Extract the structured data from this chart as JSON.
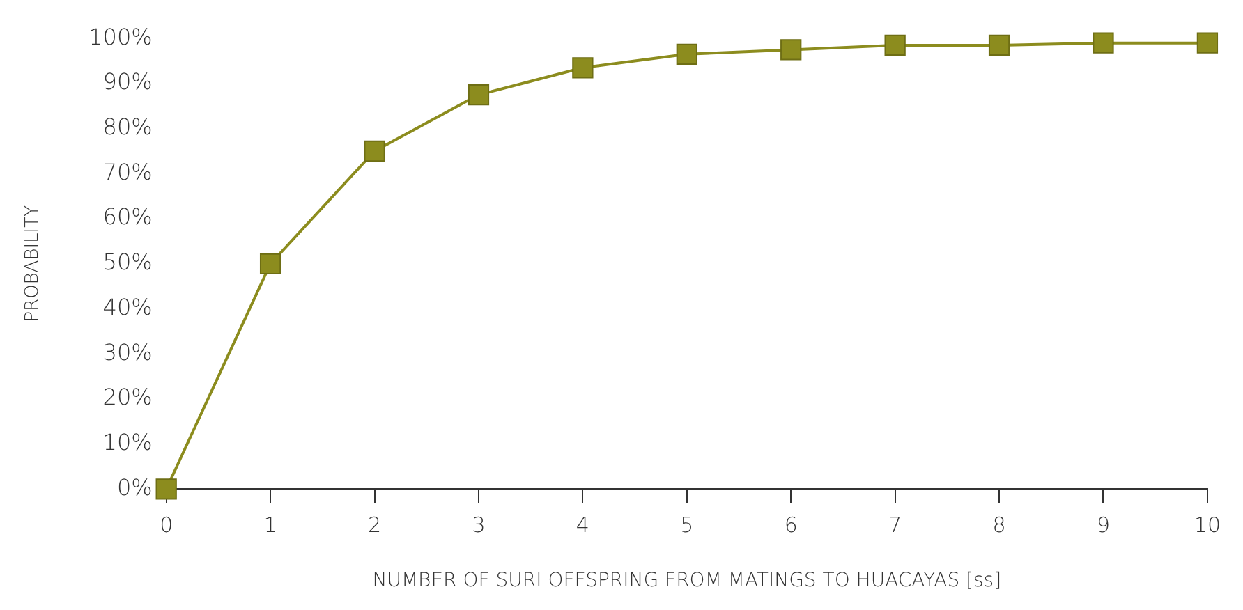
{
  "chart_data": {
    "type": "line",
    "xlabel": "NUMBER OF SURI OFFSPRING FROM MATINGS TO HUACAYAS [ss]",
    "ylabel": "PROBABILITY",
    "x": [
      0,
      1,
      2,
      3,
      4,
      5,
      6,
      7,
      8,
      9,
      10
    ],
    "series": [
      {
        "color": "#8c8c1e",
        "values": [
          0,
          50,
          75,
          87.5,
          93.5,
          96.5,
          97.5,
          98.5,
          98.5,
          99,
          99
        ]
      }
    ],
    "xlim": [
      0,
      10
    ],
    "xticks": [
      0,
      1,
      2,
      3,
      4,
      5,
      6,
      7,
      8,
      9,
      10
    ],
    "ylim": [
      0,
      100
    ],
    "yticks": [
      {
        "value": 0,
        "label": "0%"
      },
      {
        "value": 10,
        "label": "10%"
      },
      {
        "value": 20,
        "label": "20%"
      },
      {
        "value": 30,
        "label": "30%"
      },
      {
        "value": 40,
        "label": "40%"
      },
      {
        "value": 50,
        "label": "50%"
      },
      {
        "value": 60,
        "label": "60%"
      },
      {
        "value": 70,
        "label": "70%"
      },
      {
        "value": 80,
        "label": "80%"
      },
      {
        "value": 90,
        "label": "90%"
      },
      {
        "value": 100,
        "label": "100%"
      }
    ],
    "grid": false,
    "legend": false,
    "marker": "square",
    "line_style": "solid"
  }
}
